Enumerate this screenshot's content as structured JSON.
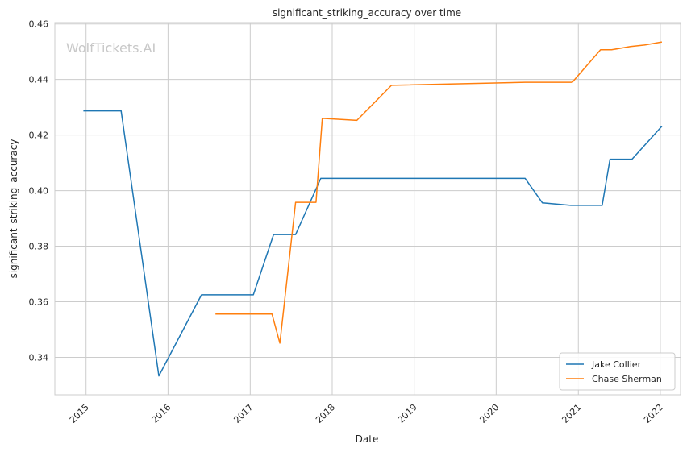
{
  "chart_data": {
    "type": "line",
    "title": "significant_striking_accuracy over time",
    "xlabel": "Date",
    "ylabel": "significant_striking_accuracy",
    "watermark": "WolfTickets.AI",
    "x_ticks": [
      "2015",
      "2016",
      "2017",
      "2018",
      "2019",
      "2020",
      "2021",
      "2022"
    ],
    "y_ticks": [
      "0.34",
      "0.36",
      "0.38",
      "0.40",
      "0.42",
      "0.44",
      "0.46"
    ],
    "ylim": [
      0.3265,
      0.4605
    ],
    "xlim": [
      "2014-08-15",
      "2022-04-01"
    ],
    "grid": true,
    "legend_position": "lower-right",
    "colors": {
      "Jake Collier": "#1f77b4",
      "Chase Sherman": "#ff7f0e"
    },
    "series": [
      {
        "name": "Jake Collier",
        "color": "#1f77b4",
        "points": [
          [
            "2014-12-20",
            0.4287
          ],
          [
            "2015-06-06",
            0.4287
          ],
          [
            "2015-11-21",
            0.3333
          ],
          [
            "2016-05-29",
            0.3625
          ],
          [
            "2017-01-15",
            0.3625
          ],
          [
            "2017-04-15",
            0.3842
          ],
          [
            "2017-07-22",
            0.3842
          ],
          [
            "2017-11-11",
            0.4044
          ],
          [
            "2020-05-09",
            0.4044
          ],
          [
            "2020-07-25",
            0.3956
          ],
          [
            "2020-11-28",
            0.3947
          ],
          [
            "2021-04-17",
            0.3947
          ],
          [
            "2021-05-22",
            0.4113
          ],
          [
            "2021-08-28",
            0.4113
          ],
          [
            "2022-01-08",
            0.4232
          ]
        ]
      },
      {
        "name": "Chase Sherman",
        "color": "#ff7f0e",
        "points": [
          [
            "2016-07-30",
            0.3556
          ],
          [
            "2017-04-08",
            0.3556
          ],
          [
            "2017-05-13",
            0.3451
          ],
          [
            "2017-07-22",
            0.3958
          ],
          [
            "2017-10-21",
            0.3958
          ],
          [
            "2017-11-18",
            0.426
          ],
          [
            "2018-04-21",
            0.4253
          ],
          [
            "2018-09-22",
            0.4379
          ],
          [
            "2020-05-09",
            0.439
          ],
          [
            "2020-12-05",
            0.439
          ],
          [
            "2021-04-10",
            0.4507
          ],
          [
            "2021-05-29",
            0.4507
          ],
          [
            "2021-08-21",
            0.4519
          ],
          [
            "2021-10-23",
            0.4524
          ],
          [
            "2022-01-08",
            0.4535
          ]
        ]
      }
    ]
  }
}
